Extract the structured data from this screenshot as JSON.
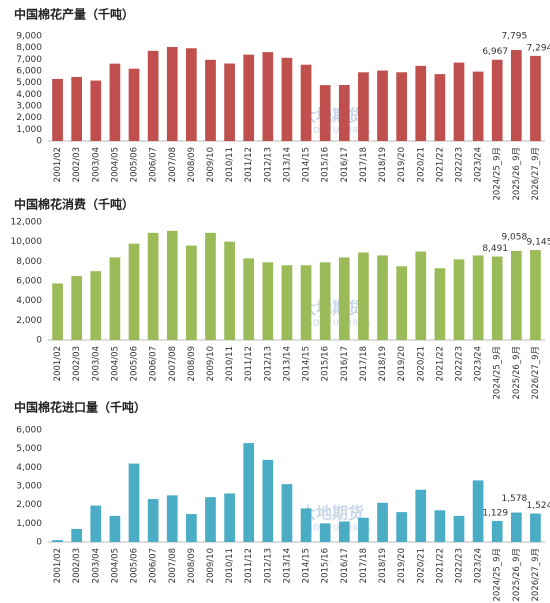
{
  "chart_data": [
    {
      "type": "bar",
      "title": "中国棉花产量（千吨）",
      "watermark": "大地期货",
      "watermark_en": "DADI FUTURES",
      "color": "#c0504d",
      "grid": false,
      "categories": [
        "2001/02",
        "2002/03",
        "2003/04",
        "2004/05",
        "2005/06",
        "2006/07",
        "2007/08",
        "2008/09",
        "2009/10",
        "2010/11",
        "2011/12",
        "2012/13",
        "2013/14",
        "2014/15",
        "2015/16",
        "2016/17",
        "2017/18",
        "2018/19",
        "2019/20",
        "2020/21",
        "2021/22",
        "2022/23",
        "2023/24",
        "2024/25_9月",
        "2025/26_9月",
        "2026/27_9月"
      ],
      "values": [
        5320,
        5490,
        5180,
        6630,
        6200,
        7730,
        8060,
        7950,
        6960,
        6640,
        7400,
        7620,
        7130,
        6540,
        4790,
        4800,
        5890,
        6040,
        5890,
        6440,
        5730,
        6720,
        5950,
        6967,
        7795,
        7294
      ],
      "value_labels": [
        null,
        null,
        null,
        null,
        null,
        null,
        null,
        null,
        null,
        null,
        null,
        null,
        null,
        null,
        null,
        null,
        null,
        null,
        null,
        null,
        null,
        null,
        null,
        "6,967",
        "7,795",
        "7,294"
      ],
      "ylim": [
        0,
        9000
      ],
      "yticks": [
        0,
        {
          "value": 1000,
          "label": "1,000"
        },
        {
          "value": 2000,
          "label": "2,000"
        },
        {
          "value": 3000,
          "label": "3,000"
        },
        {
          "value": 4000,
          "label": "4,000"
        },
        {
          "value": 5000,
          "label": "5,000"
        },
        {
          "value": 6000,
          "label": "6,000"
        },
        {
          "value": 7000,
          "label": "7,000"
        },
        {
          "value": 8000,
          "label": "8,000"
        },
        {
          "value": 9000,
          "label": "9,000"
        }
      ]
    },
    {
      "type": "bar",
      "title": "中国棉花消费（千吨）",
      "watermark": "大地期货",
      "watermark_en": "DADI FUTURES",
      "color": "#9bbb59",
      "grid": false,
      "categories": [
        "2001/02",
        "2002/03",
        "2003/04",
        "2004/05",
        "2005/06",
        "2006/07",
        "2007/08",
        "2008/09",
        "2009/10",
        "2010/11",
        "2011/12",
        "2012/13",
        "2013/14",
        "2014/15",
        "2015/16",
        "2016/17",
        "2017/18",
        "2018/19",
        "2019/20",
        "2020/21",
        "2021/22",
        "2022/23",
        "2023/24",
        "2024/25_9月",
        "2025/26_9月",
        "2026/27_9月"
      ],
      "values": [
        5750,
        6500,
        7000,
        8400,
        9800,
        10900,
        11100,
        9600,
        10900,
        10000,
        8300,
        7900,
        7600,
        7600,
        7900,
        8400,
        8900,
        8600,
        7500,
        9000,
        7300,
        8200,
        8600,
        8491,
        9058,
        9145
      ],
      "value_labels": [
        null,
        null,
        null,
        null,
        null,
        null,
        null,
        null,
        null,
        null,
        null,
        null,
        null,
        null,
        null,
        null,
        null,
        null,
        null,
        null,
        null,
        null,
        null,
        "8,491",
        "9,058",
        "9,145"
      ],
      "ylim": [
        0,
        12000
      ],
      "yticks": [
        0,
        {
          "value": 2000,
          "label": "2,000"
        },
        {
          "value": 4000,
          "label": "4,000"
        },
        {
          "value": 6000,
          "label": "6,000"
        },
        {
          "value": 8000,
          "label": "8,000"
        },
        {
          "value": 10000,
          "label": "10,000"
        },
        {
          "value": 12000,
          "label": "12,000"
        }
      ]
    },
    {
      "type": "bar",
      "title": "中国棉花进口量（千吨）",
      "watermark": "大地期货",
      "watermark_en": "DADI FUTURES",
      "color": "#4bacc6",
      "grid": false,
      "categories": [
        "2001/02",
        "2002/03",
        "2003/04",
        "2004/05",
        "2005/06",
        "2006/07",
        "2007/08",
        "2008/09",
        "2009/10",
        "2010/11",
        "2011/12",
        "2012/13",
        "2013/14",
        "2014/15",
        "2015/16",
        "2016/17",
        "2017/18",
        "2018/19",
        "2019/20",
        "2020/21",
        "2021/22",
        "2022/23",
        "2023/24",
        "2024/25_9月",
        "2025/26_9月",
        "2026/27_9月"
      ],
      "values": [
        100,
        700,
        1950,
        1400,
        4200,
        2300,
        2500,
        1500,
        2400,
        2600,
        5300,
        4400,
        3100,
        1800,
        1000,
        1100,
        1300,
        2100,
        1600,
        2800,
        1700,
        1400,
        3300,
        1129,
        1578,
        1524
      ],
      "value_labels": [
        null,
        null,
        null,
        null,
        null,
        null,
        null,
        null,
        null,
        null,
        null,
        null,
        null,
        null,
        null,
        null,
        null,
        null,
        null,
        null,
        null,
        null,
        null,
        "1,129",
        "1,578",
        "1,524"
      ],
      "ylim": [
        0,
        6000
      ],
      "yticks": [
        0,
        {
          "value": 1000,
          "label": "1,000"
        },
        {
          "value": 2000,
          "label": "2,000"
        },
        {
          "value": 3000,
          "label": "3,000"
        },
        {
          "value": 4000,
          "label": "4,000"
        },
        {
          "value": 5000,
          "label": "5,000"
        },
        {
          "value": 6000,
          "label": "6,000"
        }
      ]
    }
  ]
}
